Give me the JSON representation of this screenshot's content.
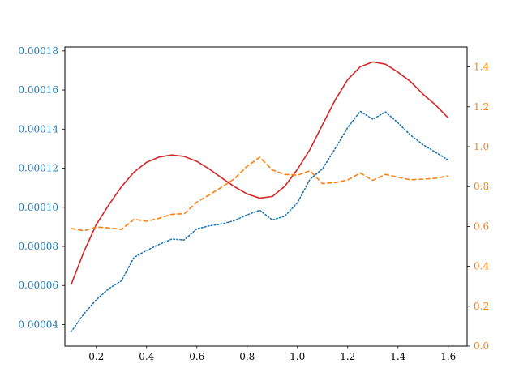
{
  "chart_data": {
    "type": "line",
    "title": "",
    "xlabel": "",
    "ylabel": "",
    "y2label": "",
    "grid": false,
    "legend": "none",
    "xlim": [
      0.075,
      1.675
    ],
    "ylim": [
      2.9e-05,
      0.000182
    ],
    "y2lim": [
      0.0,
      1.5
    ],
    "x_ticks": [
      0.2,
      0.4,
      0.6,
      0.8,
      1.0,
      1.2,
      1.4,
      1.6
    ],
    "x_tick_labels": [
      "0.2",
      "0.4",
      "0.6",
      "0.8",
      "1.0",
      "1.2",
      "1.4",
      "1.6"
    ],
    "y_ticks": [
      4e-05,
      6e-05,
      8e-05,
      0.0001,
      0.00012,
      0.00014,
      0.00016,
      0.00018
    ],
    "y_tick_labels": [
      "0.00004",
      "0.00006",
      "0.00008",
      "0.00010",
      "0.00012",
      "0.00014",
      "0.00016",
      "0.00018"
    ],
    "y2_ticks": [
      0.0,
      0.2,
      0.4,
      0.6,
      0.8,
      1.0,
      1.2,
      1.4
    ],
    "y2_tick_labels": [
      "0.0",
      "0.2",
      "0.4",
      "0.6",
      "0.8",
      "1.0",
      "1.2",
      "1.4"
    ],
    "left_axis_color": "#1f77b4",
    "right_axis_color": "#ff7f0e",
    "x": [
      0.1,
      0.15,
      0.2,
      0.25,
      0.3,
      0.35,
      0.4,
      0.45,
      0.5,
      0.55,
      0.6,
      0.65,
      0.7,
      0.75,
      0.8,
      0.85,
      0.9,
      0.95,
      1.0,
      1.05,
      1.1,
      1.15,
      1.2,
      1.25,
      1.3,
      1.35,
      1.4,
      1.45,
      1.5,
      1.55,
      1.6
    ],
    "series": [
      {
        "axis": "left",
        "color": "#d62728",
        "style": "solid",
        "values": [
          6.05e-05,
          7.71e-05,
          9.12e-05,
          0.0001013,
          0.0001105,
          0.000118,
          0.000123,
          0.0001257,
          0.0001268,
          0.000126,
          0.0001235,
          0.0001195,
          0.0001149,
          0.0001105,
          0.0001068,
          0.0001047,
          0.0001055,
          0.0001108,
          0.0001194,
          0.0001296,
          0.0001423,
          0.0001548,
          0.0001653,
          0.0001719,
          0.0001744,
          0.0001732,
          0.0001691,
          0.0001643,
          0.0001578,
          0.0001523,
          0.0001457
        ]
      },
      {
        "axis": "left",
        "color": "#1f77b4",
        "style": "dotted",
        "values": [
          3.63e-05,
          4.54e-05,
          5.27e-05,
          5.84e-05,
          6.24e-05,
          7.44e-05,
          7.79e-05,
          8.1e-05,
          8.37e-05,
          8.33e-05,
          8.9e-05,
          9.05e-05,
          9.15e-05,
          9.32e-05,
          9.61e-05,
          9.85e-05,
          9.35e-05,
          9.55e-05,
          0.0001023,
          0.0001143,
          0.0001197,
          0.00013,
          0.0001408,
          0.0001491,
          0.000145,
          0.0001488,
          0.0001432,
          0.0001369,
          0.000132,
          0.0001281,
          0.0001242
        ]
      },
      {
        "axis": "right",
        "color": "#ff7f0e",
        "style": "dashed",
        "values": [
          0.59,
          0.578,
          0.597,
          0.593,
          0.585,
          0.636,
          0.626,
          0.641,
          0.661,
          0.664,
          0.722,
          0.759,
          0.798,
          0.84,
          0.902,
          0.947,
          0.883,
          0.861,
          0.857,
          0.879,
          0.815,
          0.82,
          0.833,
          0.868,
          0.831,
          0.861,
          0.847,
          0.834,
          0.837,
          0.842,
          0.853
        ]
      }
    ]
  }
}
